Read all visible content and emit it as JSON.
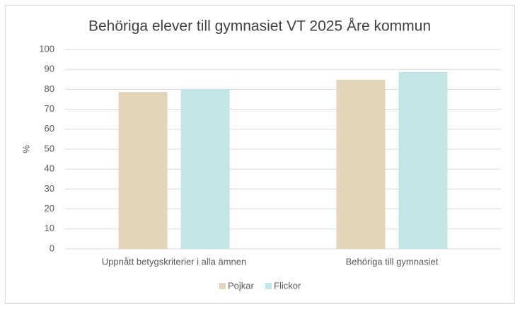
{
  "chart_data": {
    "type": "bar",
    "title": "Behöriga elever till gymnasiet VT 2025 Åre kommun",
    "y_label": "%",
    "categories": [
      "Uppnått betygskriterier i alla ämnen",
      "Behöriga till gymnasiet"
    ],
    "series": [
      {
        "name": "Pojkar",
        "color": "#e3d5b8",
        "values": [
          78.7,
          84.8
        ]
      },
      {
        "name": "Flickor",
        "color": "#c2e5e6",
        "values": [
          80.1,
          88.7
        ]
      }
    ],
    "ylim": [
      0,
      100
    ],
    "yticks": [
      0,
      10,
      20,
      30,
      40,
      50,
      60,
      70,
      80,
      90,
      100
    ],
    "grid": true,
    "legend": "bottom"
  }
}
